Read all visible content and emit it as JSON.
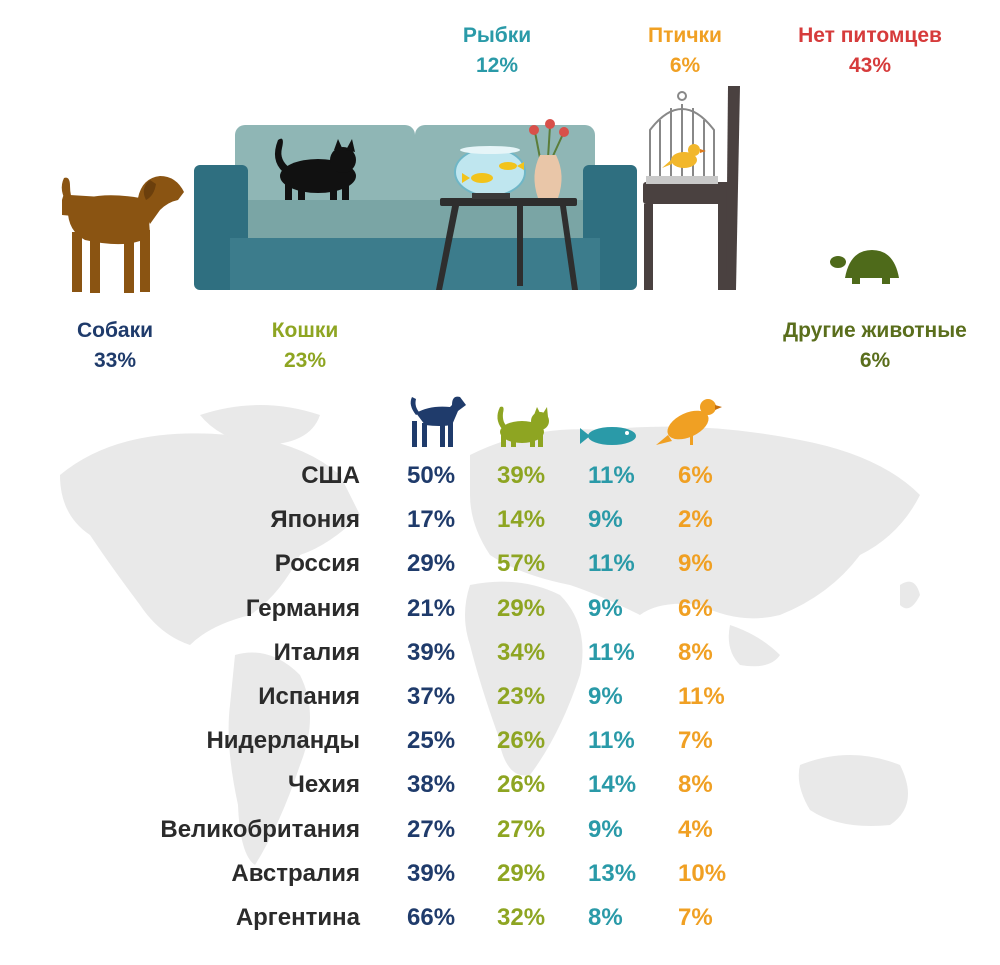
{
  "colors": {
    "dog": "#1f3b6b",
    "cat": "#8ea522",
    "fish": "#2a9aa8",
    "bird": "#f0a023",
    "none": "#d63b3b",
    "other": "#5a6e1c",
    "country": "#2b2b2b",
    "map": "#e9e9e9"
  },
  "summary": {
    "dogs": {
      "name": "Собаки",
      "pct": "33%"
    },
    "cats": {
      "name": "Кошки",
      "pct": "23%"
    },
    "fish": {
      "name": "Рыбки",
      "pct": "12%"
    },
    "birds": {
      "name": "Птички",
      "pct": "6%"
    },
    "none": {
      "name": "Нет питомцев",
      "pct": "43%"
    },
    "other": {
      "name": "Другие животные",
      "pct": "6%"
    }
  },
  "icons": [
    "dog-icon",
    "cat-icon",
    "fish-icon",
    "bird-icon",
    "sofa-icon",
    "table-icon",
    "fishbowl-icon",
    "vase-icon",
    "chair-icon",
    "birdcage-icon",
    "turtle-icon",
    "world-map-icon"
  ],
  "chart_data": {
    "type": "table",
    "columns": [
      "dog-icon",
      "cat-icon",
      "fish-icon",
      "bird-icon"
    ],
    "rows": [
      {
        "country": "США",
        "values": [
          "50%",
          "39%",
          "11%",
          "6%"
        ]
      },
      {
        "country": "Япония",
        "values": [
          "17%",
          "14%",
          "9%",
          "2%"
        ]
      },
      {
        "country": "Россия",
        "values": [
          "29%",
          "57%",
          "11%",
          "9%"
        ]
      },
      {
        "country": "Германия",
        "values": [
          "21%",
          "29%",
          "9%",
          "6%"
        ]
      },
      {
        "country": "Италия",
        "values": [
          "39%",
          "34%",
          "11%",
          "8%"
        ]
      },
      {
        "country": "Испания",
        "values": [
          "37%",
          "23%",
          "9%",
          "11%"
        ]
      },
      {
        "country": "Нидерланды",
        "values": [
          "25%",
          "26%",
          "11%",
          "7%"
        ]
      },
      {
        "country": "Чехия",
        "values": [
          "38%",
          "26%",
          "14%",
          "8%"
        ]
      },
      {
        "country": "Великобритания",
        "values": [
          "27%",
          "27%",
          "9%",
          "4%"
        ]
      },
      {
        "country": "Австралия",
        "values": [
          "39%",
          "29%",
          "13%",
          "10%"
        ]
      },
      {
        "country": "Аргентина",
        "values": [
          "66%",
          "32%",
          "8%",
          "7%"
        ]
      }
    ]
  }
}
